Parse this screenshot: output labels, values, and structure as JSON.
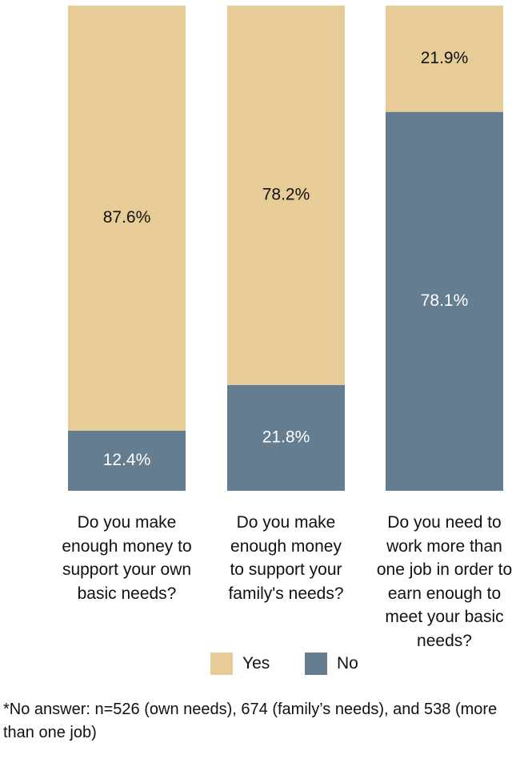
{
  "chart_data": {
    "type": "bar",
    "stacked": true,
    "categories": [
      "Do you make enough money to support your own basic needs?",
      "Do you make enough money to support your family's needs?",
      "Do you need to work more than one job in order to earn enough to meet your basic needs?"
    ],
    "category_lines": [
      [
        "Do you make",
        "enough money to",
        "support your own",
        "basic needs?"
      ],
      [
        "Do you make",
        "enough money",
        "to support your",
        "family's needs?"
      ],
      [
        "Do you need to",
        "work more than",
        "one job in order to",
        "earn enough to",
        "meet your basic",
        "needs?"
      ]
    ],
    "series": [
      {
        "name": "Yes",
        "color": "#E8CC98",
        "values": [
          87.6,
          78.2,
          21.9
        ],
        "labels": [
          "87.6%",
          "78.2%",
          "21.9%"
        ]
      },
      {
        "name": "No",
        "color": "#657D91",
        "values": [
          12.4,
          21.8,
          78.1
        ],
        "labels": [
          "12.4%",
          "21.8%",
          "78.1%"
        ]
      }
    ],
    "ylim": [
      0,
      100
    ],
    "grid": false,
    "legend_position": "bottom"
  },
  "legend": {
    "yes_label": "Yes",
    "no_label": "No"
  },
  "footnote": "*No answer: n=526 (own needs), 674 (family’s needs), and 538 (more than one job)"
}
